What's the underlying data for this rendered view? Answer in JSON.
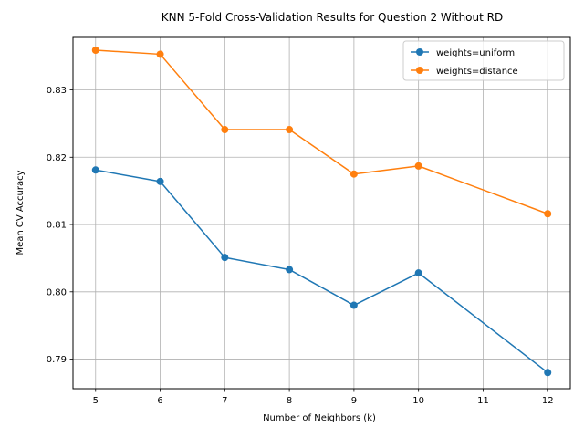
{
  "chart_data": {
    "type": "line",
    "title": "KNN 5-Fold Cross-Validation Results for Question 2 Without RD",
    "xlabel": "Number of Neighbors (k)",
    "ylabel": "Mean CV Accuracy",
    "x_ticks": [
      5,
      6,
      7,
      8,
      9,
      10,
      11,
      12
    ],
    "y_ticks": [
      0.79,
      0.8,
      0.81,
      0.82,
      0.83
    ],
    "y_tick_labels": [
      "0.79",
      "0.80",
      "0.81",
      "0.82",
      "0.83"
    ],
    "xlim": [
      4.65,
      12.35
    ],
    "ylim": [
      0.7856,
      0.8378
    ],
    "grid": true,
    "legend_position": "upper right",
    "series": [
      {
        "name": "weights=uniform",
        "color": "#1f77b4",
        "marker": "circle",
        "x": [
          5,
          6,
          7,
          8,
          9,
          10,
          12
        ],
        "y": [
          0.8181,
          0.8164,
          0.8051,
          0.8033,
          0.798,
          0.8028,
          0.788
        ]
      },
      {
        "name": "weights=distance",
        "color": "#ff7f0e",
        "marker": "circle",
        "x": [
          5,
          6,
          7,
          8,
          9,
          10,
          12
        ],
        "y": [
          0.8359,
          0.8353,
          0.8241,
          0.8241,
          0.8175,
          0.8187,
          0.8116
        ]
      }
    ]
  }
}
